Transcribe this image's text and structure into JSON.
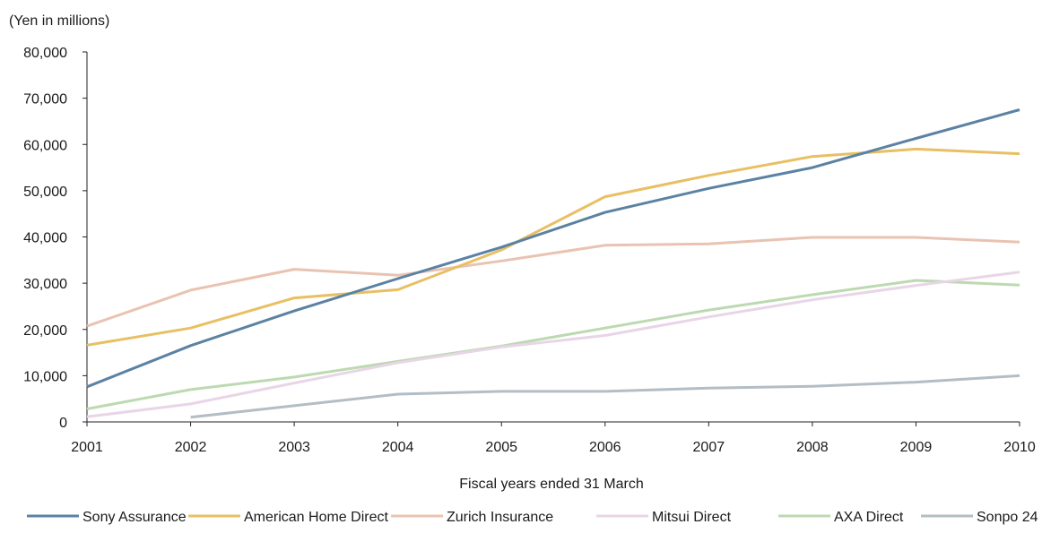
{
  "chart_data": {
    "type": "line",
    "y_unit_label": "(Yen in millions)",
    "xlabel": "Fiscal years ended 31 March",
    "categories": [
      "2001",
      "2002",
      "2003",
      "2004",
      "2005",
      "2006",
      "2007",
      "2008",
      "2009",
      "2010"
    ],
    "y_ticks": [
      "0",
      "10,000",
      "20,000",
      "30,000",
      "40,000",
      "50,000",
      "60,000",
      "70,000",
      "80,000"
    ],
    "ylim": [
      0,
      80000
    ],
    "grid": false,
    "legend_position": "bottom",
    "series": [
      {
        "name": "Sony Assurance",
        "color": "#5b82a3",
        "values": [
          7600,
          16500,
          24000,
          31000,
          37800,
          45300,
          50500,
          55000,
          61300,
          67500
        ]
      },
      {
        "name": "American Home Direct",
        "color": "#e8bf63",
        "values": [
          16600,
          20300,
          26800,
          28600,
          37200,
          48700,
          53300,
          57400,
          59000,
          58000
        ]
      },
      {
        "name": "Zurich Insurance",
        "color": "#e9c3b1",
        "values": [
          20700,
          28500,
          33000,
          31700,
          34800,
          38200,
          38500,
          39900,
          39900,
          38900
        ]
      },
      {
        "name": "Mitsui Direct",
        "color": "#e8d5e7",
        "values": [
          1100,
          3900,
          8400,
          12800,
          16200,
          18700,
          22700,
          26400,
          29500,
          32400
        ]
      },
      {
        "name": "AXA Direct",
        "color": "#bcd9b0",
        "values": [
          2800,
          7000,
          9700,
          13100,
          16400,
          20300,
          24200,
          27500,
          30600,
          29600
        ]
      },
      {
        "name": "Sonpo 24",
        "color": "#b3bdc5",
        "values": [
          null,
          1000,
          3500,
          6000,
          6600,
          6600,
          7300,
          7700,
          8600,
          10000
        ]
      }
    ]
  }
}
